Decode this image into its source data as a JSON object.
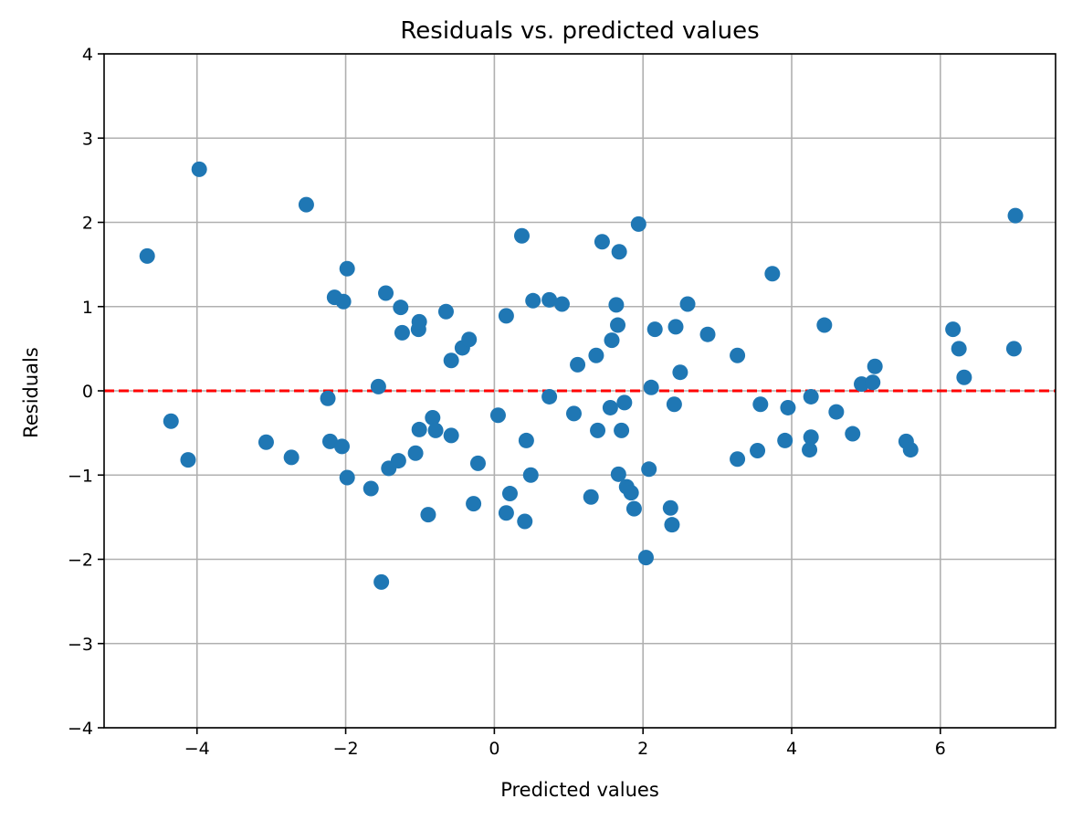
{
  "chart_data": {
    "type": "scatter",
    "title": "Residuals vs. predicted values",
    "xlabel": "Predicted values",
    "ylabel": "Residuals",
    "xlim": [
      -5.25,
      7.55
    ],
    "ylim": [
      -4,
      4
    ],
    "xticks": [
      -4,
      -2,
      0,
      2,
      4,
      6
    ],
    "xtick_labels": [
      "−4",
      "−2",
      "0",
      "2",
      "4",
      "6"
    ],
    "yticks": [
      -4,
      -3,
      -2,
      -1,
      0,
      1,
      2,
      3,
      4
    ],
    "ytick_labels": [
      "−4",
      "−3",
      "−2",
      "−1",
      "0",
      "1",
      "2",
      "3",
      "4"
    ],
    "grid": true,
    "point_color": "#1f77b4",
    "reference_line": {
      "y": 0,
      "color": "#ff0000",
      "style": "dashed"
    },
    "points": [
      {
        "x": -4.67,
        "y": 1.6
      },
      {
        "x": -4.35,
        "y": -0.36
      },
      {
        "x": -4.12,
        "y": -0.82
      },
      {
        "x": -3.97,
        "y": 2.63
      },
      {
        "x": -3.07,
        "y": -0.61
      },
      {
        "x": -2.73,
        "y": -0.79
      },
      {
        "x": -2.53,
        "y": 2.21
      },
      {
        "x": -2.24,
        "y": -0.09
      },
      {
        "x": -2.21,
        "y": -0.6
      },
      {
        "x": -2.15,
        "y": 1.11
      },
      {
        "x": -2.05,
        "y": -0.66
      },
      {
        "x": -2.03,
        "y": 1.06
      },
      {
        "x": -1.98,
        "y": 1.45
      },
      {
        "x": -1.98,
        "y": -1.03
      },
      {
        "x": -1.66,
        "y": -1.16
      },
      {
        "x": -1.56,
        "y": 0.05
      },
      {
        "x": -1.52,
        "y": -2.27
      },
      {
        "x": -1.46,
        "y": 1.16
      },
      {
        "x": -1.42,
        "y": -0.92
      },
      {
        "x": -1.29,
        "y": -0.83
      },
      {
        "x": -1.26,
        "y": 0.99
      },
      {
        "x": -1.24,
        "y": 0.69
      },
      {
        "x": -1.06,
        "y": -0.74
      },
      {
        "x": -1.02,
        "y": 0.73
      },
      {
        "x": -1.01,
        "y": 0.82
      },
      {
        "x": -1.01,
        "y": -0.46
      },
      {
        "x": -0.89,
        "y": -1.47
      },
      {
        "x": -0.83,
        "y": -0.32
      },
      {
        "x": -0.79,
        "y": -0.47
      },
      {
        "x": -0.65,
        "y": 0.94
      },
      {
        "x": -0.58,
        "y": 0.36
      },
      {
        "x": -0.58,
        "y": -0.53
      },
      {
        "x": -0.43,
        "y": 0.51
      },
      {
        "x": -0.34,
        "y": 0.61
      },
      {
        "x": -0.28,
        "y": -1.34
      },
      {
        "x": -0.22,
        "y": -0.86
      },
      {
        "x": 0.05,
        "y": -0.29
      },
      {
        "x": 0.16,
        "y": 0.89
      },
      {
        "x": 0.16,
        "y": -1.45
      },
      {
        "x": 0.21,
        "y": -1.22
      },
      {
        "x": 0.37,
        "y": 1.84
      },
      {
        "x": 0.41,
        "y": -1.55
      },
      {
        "x": 0.43,
        "y": -0.59
      },
      {
        "x": 0.49,
        "y": -1.0
      },
      {
        "x": 0.52,
        "y": 1.07
      },
      {
        "x": 0.74,
        "y": 1.08
      },
      {
        "x": 0.74,
        "y": -0.07
      },
      {
        "x": 0.91,
        "y": 1.03
      },
      {
        "x": 1.07,
        "y": -0.27
      },
      {
        "x": 1.12,
        "y": 0.31
      },
      {
        "x": 1.3,
        "y": -1.26
      },
      {
        "x": 1.37,
        "y": 0.42
      },
      {
        "x": 1.39,
        "y": -0.47
      },
      {
        "x": 1.45,
        "y": 1.77
      },
      {
        "x": 1.56,
        "y": -0.2
      },
      {
        "x": 1.58,
        "y": 0.6
      },
      {
        "x": 1.64,
        "y": 1.02
      },
      {
        "x": 1.66,
        "y": 0.78
      },
      {
        "x": 1.67,
        "y": -0.99
      },
      {
        "x": 1.68,
        "y": 1.65
      },
      {
        "x": 1.71,
        "y": -0.47
      },
      {
        "x": 1.75,
        "y": -0.14
      },
      {
        "x": 1.78,
        "y": -1.14
      },
      {
        "x": 1.84,
        "y": -1.21
      },
      {
        "x": 1.88,
        "y": -1.4
      },
      {
        "x": 1.94,
        "y": 1.98
      },
      {
        "x": 2.04,
        "y": -1.98
      },
      {
        "x": 2.08,
        "y": -0.93
      },
      {
        "x": 2.11,
        "y": 0.04
      },
      {
        "x": 2.16,
        "y": 0.73
      },
      {
        "x": 2.37,
        "y": -1.39
      },
      {
        "x": 2.39,
        "y": -1.59
      },
      {
        "x": 2.42,
        "y": -0.16
      },
      {
        "x": 2.44,
        "y": 0.76
      },
      {
        "x": 2.5,
        "y": 0.22
      },
      {
        "x": 2.6,
        "y": 1.03
      },
      {
        "x": 2.87,
        "y": 0.67
      },
      {
        "x": 3.27,
        "y": 0.42
      },
      {
        "x": 3.27,
        "y": -0.81
      },
      {
        "x": 3.54,
        "y": -0.71
      },
      {
        "x": 3.58,
        "y": -0.16
      },
      {
        "x": 3.74,
        "y": 1.39
      },
      {
        "x": 3.91,
        "y": -0.59
      },
      {
        "x": 3.95,
        "y": -0.2
      },
      {
        "x": 4.24,
        "y": -0.7
      },
      {
        "x": 4.26,
        "y": -0.55
      },
      {
        "x": 4.26,
        "y": -0.07
      },
      {
        "x": 4.44,
        "y": 0.78
      },
      {
        "x": 4.6,
        "y": -0.25
      },
      {
        "x": 4.82,
        "y": -0.51
      },
      {
        "x": 4.94,
        "y": 0.08
      },
      {
        "x": 5.09,
        "y": 0.1
      },
      {
        "x": 5.12,
        "y": 0.29
      },
      {
        "x": 5.54,
        "y": -0.6
      },
      {
        "x": 5.6,
        "y": -0.7
      },
      {
        "x": 6.17,
        "y": 0.73
      },
      {
        "x": 6.25,
        "y": 0.5
      },
      {
        "x": 6.32,
        "y": 0.16
      },
      {
        "x": 6.99,
        "y": 0.5
      },
      {
        "x": 7.01,
        "y": 2.08
      }
    ]
  }
}
